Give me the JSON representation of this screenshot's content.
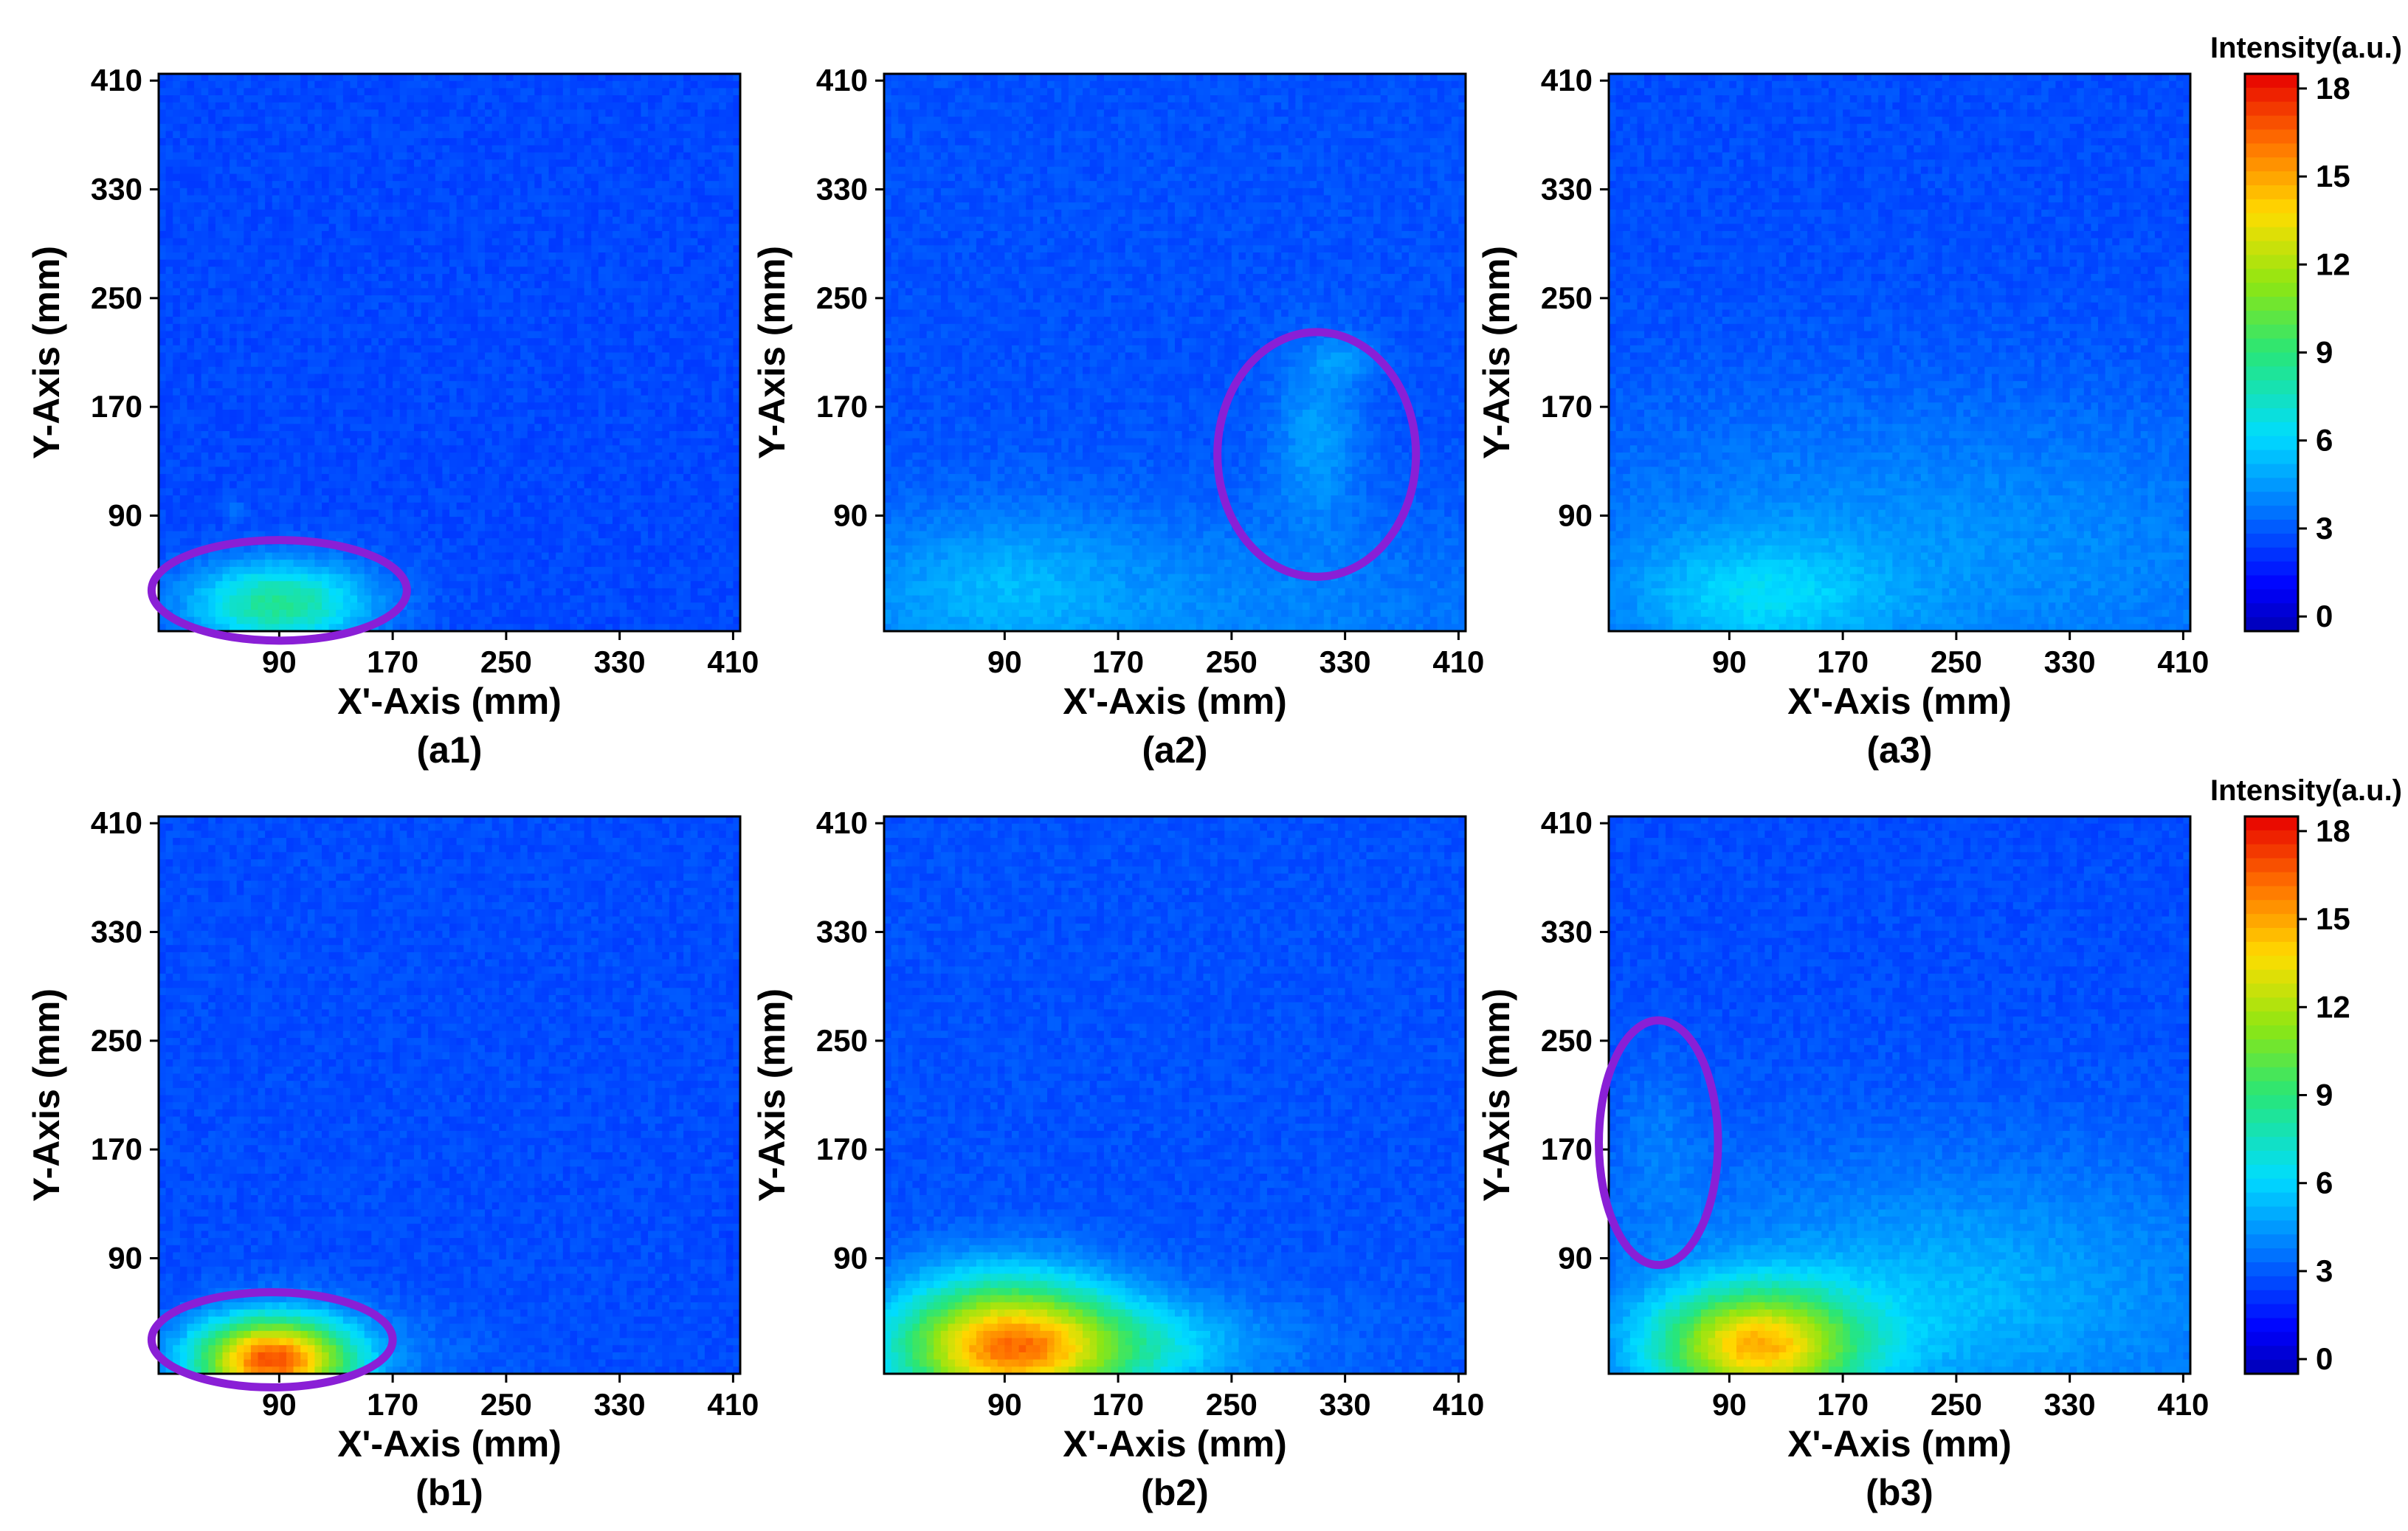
{
  "figure": {
    "colorbar_title": "Intensity(a.u.)"
  },
  "chart_data": [
    {
      "type": "heatmap",
      "panel_label": "(a1)",
      "xlabel": "X'-Axis (mm)",
      "ylabel": "Y-Axis (mm)",
      "x_ticks": [
        90,
        170,
        250,
        330,
        410
      ],
      "y_ticks": [
        90,
        170,
        250,
        330,
        410
      ],
      "xlim": [
        5,
        415
      ],
      "ylim": [
        5,
        415
      ],
      "background_level": 2.6,
      "hot_spots": [
        {
          "x": 90,
          "y": 25,
          "sx": 45,
          "sy": 22,
          "peak": 8.5
        },
        {
          "x": 60,
          "y": 95,
          "sx": 5,
          "sy": 5,
          "peak": 3.5
        }
      ],
      "annotation_ellipse": {
        "cx": 90,
        "cy": 35,
        "rx": 90,
        "ry": 37
      }
    },
    {
      "type": "heatmap",
      "panel_label": "(a2)",
      "xlabel": "X'-Axis (mm)",
      "ylabel": "Y-Axis (mm)",
      "x_ticks": [
        90,
        170,
        250,
        330,
        410
      ],
      "y_ticks": [
        90,
        170,
        250,
        330,
        410
      ],
      "xlim": [
        5,
        415
      ],
      "ylim": [
        5,
        415
      ],
      "background_level": 2.8,
      "hot_spots": [
        {
          "x": 150,
          "y": 20,
          "sx": 230,
          "sy": 55,
          "peak": 4.2
        },
        {
          "x": 90,
          "y": 40,
          "sx": 55,
          "sy": 35,
          "peak": 4.0
        },
        {
          "x": 310,
          "y": 150,
          "sx": 22,
          "sy": 45,
          "peak": 4.5
        },
        {
          "x": 330,
          "y": 205,
          "sx": 18,
          "sy": 12,
          "peak": 4.0
        }
      ],
      "annotation_ellipse": {
        "cx": 310,
        "cy": 135,
        "rx": 70,
        "ry": 90
      }
    },
    {
      "type": "heatmap",
      "panel_label": "(a3)",
      "xlabel": "X'-Axis (mm)",
      "ylabel": "Y-Axis (mm)",
      "x_ticks": [
        90,
        170,
        250,
        330,
        410
      ],
      "y_ticks": [
        90,
        170,
        250,
        330,
        410
      ],
      "xlim": [
        5,
        415
      ],
      "ylim": [
        5,
        415
      ],
      "background_level": 2.7,
      "hot_spots": [
        {
          "x": 230,
          "y": 60,
          "sx": 210,
          "sy": 85,
          "peak": 4.3
        },
        {
          "x": 110,
          "y": 30,
          "sx": 60,
          "sy": 30,
          "peak": 5.0
        }
      ],
      "annotation_ellipse": null
    },
    {
      "type": "heatmap",
      "panel_label": "(b1)",
      "xlabel": "X'-Axis (mm)",
      "ylabel": "Y-Axis (mm)",
      "x_ticks": [
        90,
        170,
        250,
        330,
        410
      ],
      "y_ticks": [
        90,
        170,
        250,
        330,
        410
      ],
      "xlim": [
        5,
        415
      ],
      "ylim": [
        5,
        415
      ],
      "background_level": 2.7,
      "hot_spots": [
        {
          "x": 85,
          "y": 15,
          "sx": 38,
          "sy": 22,
          "peak": 16.5
        },
        {
          "x": 150,
          "y": 20,
          "sx": 60,
          "sy": 25,
          "peak": 3.5
        },
        {
          "x": 412,
          "y": 120,
          "sx": 8,
          "sy": 60,
          "peak": 2.5
        }
      ],
      "annotation_ellipse": {
        "cx": 85,
        "cy": 30,
        "rx": 85,
        "ry": 35
      }
    },
    {
      "type": "heatmap",
      "panel_label": "(b2)",
      "xlabel": "X'-Axis (mm)",
      "ylabel": "Y-Axis (mm)",
      "x_ticks": [
        90,
        170,
        250,
        330,
        410
      ],
      "y_ticks": [
        90,
        170,
        250,
        330,
        410
      ],
      "xlim": [
        5,
        415
      ],
      "ylim": [
        5,
        415
      ],
      "background_level": 2.8,
      "hot_spots": [
        {
          "x": 90,
          "y": 25,
          "sx": 55,
          "sy": 35,
          "peak": 14.5
        },
        {
          "x": 170,
          "y": 25,
          "sx": 70,
          "sy": 25,
          "peak": 6.0
        },
        {
          "x": 300,
          "y": 30,
          "sx": 150,
          "sy": 40,
          "peak": 3.0
        }
      ],
      "annotation_ellipse": null
    },
    {
      "type": "heatmap",
      "panel_label": "(b3)",
      "xlabel": "X'-Axis (mm)",
      "ylabel": "Y-Axis (mm)",
      "x_ticks": [
        90,
        170,
        250,
        330,
        410
      ],
      "y_ticks": [
        90,
        170,
        250,
        330,
        410
      ],
      "xlim": [
        5,
        415
      ],
      "ylim": [
        5,
        415
      ],
      "background_level": 2.7,
      "hot_spots": [
        {
          "x": 250,
          "y": 60,
          "sx": 190,
          "sy": 80,
          "peak": 4.5
        },
        {
          "x": 110,
          "y": 25,
          "sx": 50,
          "sy": 30,
          "peak": 13.5
        },
        {
          "x": 240,
          "y": 55,
          "sx": 70,
          "sy": 45,
          "peak": 3.5
        },
        {
          "x": 40,
          "y": 180,
          "sx": 22,
          "sy": 45,
          "peak": 3.5
        }
      ],
      "annotation_ellipse": {
        "cx": 40,
        "cy": 175,
        "rx": 42,
        "ry": 90
      }
    }
  ],
  "colorbar": {
    "ticks": [
      0,
      3,
      6,
      9,
      12,
      15,
      18
    ],
    "range": [
      -0.5,
      18.5
    ]
  }
}
